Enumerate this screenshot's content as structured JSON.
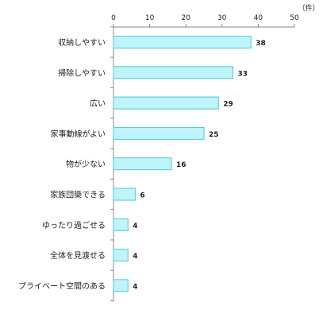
{
  "chart_data": {
    "type": "bar",
    "orientation": "horizontal",
    "unit": "（件）",
    "xlim": [
      0,
      50
    ],
    "ticks": [
      0,
      10,
      20,
      30,
      40,
      50
    ],
    "categories": [
      "収納しやすい",
      "掃除しやすい",
      "広い",
      "家事動線がよい",
      "物が少ない",
      "家族団欒できる",
      "ゆったり過ごせる",
      "全体を見渡せる",
      "プライベート空間のある"
    ],
    "values": [
      38,
      33,
      29,
      25,
      16,
      6,
      4,
      4,
      4
    ],
    "bar_fill": "#bff4fb",
    "bar_stroke": "#4cc8d8",
    "axis_color": "#888888"
  }
}
